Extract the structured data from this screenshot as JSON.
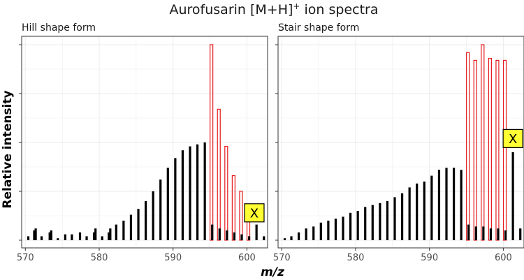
{
  "figure": {
    "title": "Aurofusarin [M+H]",
    "title_sup": "+",
    "title_tail": " ion spectra",
    "ylabel": "Relative intensity",
    "xlabel": "m/z"
  },
  "colors": {
    "peak": "#000000",
    "highlight": "#e41a1c",
    "badge_fill": "#ffff33",
    "grid": "#ebebeb",
    "frame": "#333333"
  },
  "chart_data": [
    {
      "type": "bar",
      "title": "Hill shape form",
      "xlabel": "m/z",
      "ylabel": "Relative intensity",
      "xlim": [
        569.5,
        602.8
      ],
      "ylim": [
        0,
        1.05
      ],
      "xticks": [
        570,
        580,
        590,
        600
      ],
      "grid": true,
      "series": [
        {
          "name": "black",
          "x": [
            570.4,
            571.2,
            571.4,
            572.2,
            573.3,
            573.5,
            574.4,
            575.4,
            576.3,
            577.4,
            578.3,
            579.3,
            579.5,
            580.4,
            581.3,
            581.5,
            582.3,
            583.3,
            584.3,
            585.3,
            586.3,
            587.3,
            588.3,
            589.3,
            590.3,
            591.3,
            592.3,
            593.3,
            594.3,
            595.3,
            596.3,
            597.3,
            598.3,
            599.3,
            600.3,
            601.3,
            602.3
          ],
          "y": [
            0.02,
            0.05,
            0.06,
            0.02,
            0.04,
            0.05,
            0.01,
            0.03,
            0.03,
            0.04,
            0.02,
            0.04,
            0.06,
            0.02,
            0.04,
            0.06,
            0.08,
            0.1,
            0.13,
            0.16,
            0.2,
            0.25,
            0.31,
            0.37,
            0.42,
            0.46,
            0.48,
            0.49,
            0.5,
            0.08,
            0.06,
            0.05,
            0.04,
            0.03,
            0.02,
            0.08,
            0.02
          ]
        },
        {
          "name": "red",
          "x": [
            595.2,
            596.2,
            597.2,
            598.2,
            599.2,
            600.2
          ],
          "y": [
            1.0,
            0.67,
            0.48,
            0.33,
            0.25,
            0.13
          ]
        }
      ],
      "annotations": [
        {
          "text": "X",
          "x": 601.0,
          "y": 0.14
        }
      ]
    },
    {
      "type": "bar",
      "title": "Stair shape form",
      "xlabel": "m/z",
      "ylabel": "Relative intensity",
      "xlim": [
        569.5,
        602.8
      ],
      "ylim": [
        0,
        1.05
      ],
      "xticks": [
        570,
        580,
        590,
        600
      ],
      "grid": true,
      "series": [
        {
          "name": "black",
          "x": [
            570.4,
            571.3,
            572.3,
            573.3,
            574.3,
            575.3,
            576.3,
            577.3,
            578.3,
            579.3,
            580.3,
            581.3,
            582.3,
            583.3,
            584.3,
            585.3,
            586.3,
            587.3,
            588.3,
            589.3,
            590.3,
            591.3,
            592.3,
            593.3,
            594.3,
            595.3,
            596.3,
            597.3,
            598.3,
            599.3,
            600.3,
            601.3,
            602.3
          ],
          "y": [
            0.01,
            0.02,
            0.04,
            0.06,
            0.07,
            0.09,
            0.1,
            0.11,
            0.12,
            0.14,
            0.15,
            0.17,
            0.18,
            0.19,
            0.2,
            0.22,
            0.24,
            0.27,
            0.29,
            0.3,
            0.33,
            0.36,
            0.37,
            0.37,
            0.36,
            0.08,
            0.07,
            0.07,
            0.06,
            0.06,
            0.05,
            0.45,
            0.06
          ]
        },
        {
          "name": "red",
          "x": [
            595.2,
            596.2,
            597.2,
            598.2,
            599.2,
            600.2
          ],
          "y": [
            0.96,
            0.92,
            1.0,
            0.93,
            0.92,
            0.92
          ]
        }
      ],
      "annotations": [
        {
          "text": "X",
          "x": 601.3,
          "y": 0.52
        }
      ]
    }
  ]
}
